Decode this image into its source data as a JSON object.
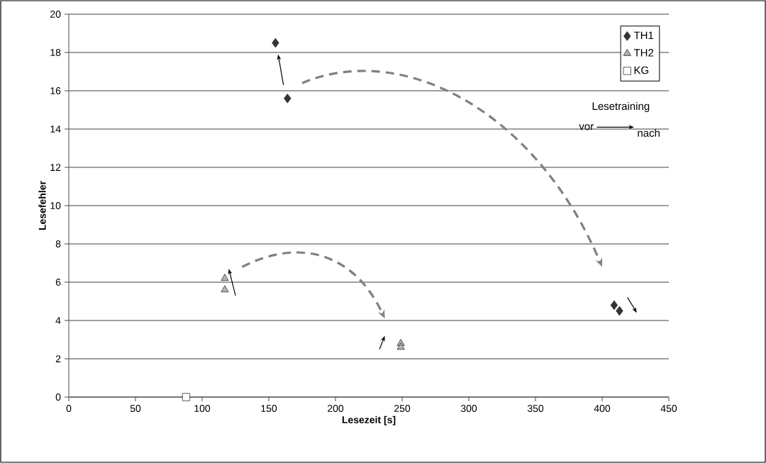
{
  "chart_data": {
    "type": "scatter",
    "xlabel": "Lesezeit [s]",
    "ylabel": "Lesefehler",
    "xlim": [
      0,
      450
    ],
    "xticks": [
      0,
      50,
      100,
      150,
      200,
      250,
      300,
      350,
      400,
      450
    ],
    "ylim": [
      0,
      20
    ],
    "yticks": [
      0,
      2,
      4,
      6,
      8,
      10,
      12,
      14,
      16,
      18,
      20
    ],
    "grid": "y",
    "legend": "top right",
    "annotations": [
      "Lesetraining",
      "vor",
      "nach"
    ],
    "series": [
      {
        "name": "TH1",
        "color": "#333333",
        "marker": "diamond",
        "x": [
          155,
          164,
          409,
          413
        ],
        "values": [
          18.5,
          15.6,
          4.8,
          4.5
        ]
      },
      {
        "name": "TH2",
        "color": "#b3b3b3",
        "marker": "triangle",
        "x": [
          117,
          117,
          249,
          249
        ],
        "values": [
          6.2,
          5.6,
          2.8,
          2.6
        ]
      },
      {
        "name": "KG",
        "color": "#ffffff",
        "marker": "square",
        "x": [
          88
        ],
        "values": [
          0
        ]
      }
    ]
  }
}
